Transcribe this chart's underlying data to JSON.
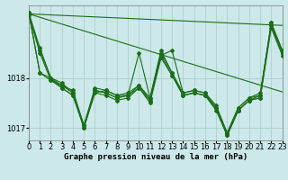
{
  "title": "Graphe pression niveau de la mer (hPa)",
  "background_color": "#cce8e8",
  "line_color": "#1a6e1a",
  "grid_color": "#a8cccc",
  "series": [
    [
      1019.3,
      1018.6,
      1018.0,
      1017.85,
      1017.75,
      1017.05,
      1017.7,
      1017.75,
      1017.65,
      1017.65,
      1018.5,
      1017.6,
      1018.55,
      1018.1,
      1017.65,
      1017.7,
      1017.65,
      1017.4,
      1016.85,
      1017.35,
      1017.55,
      1017.65,
      1019.1,
      1018.55
    ],
    [
      1019.3,
      1018.1,
      1018.0,
      1017.8,
      1017.65,
      1017.05,
      1017.75,
      1017.7,
      1017.6,
      1017.65,
      1017.85,
      1017.55,
      1018.45,
      1018.55,
      1017.7,
      1017.75,
      1017.7,
      1017.4,
      1016.9,
      1017.4,
      1017.6,
      1017.7,
      1019.05,
      1018.5
    ],
    [
      1019.3,
      1018.55,
      1018.0,
      1017.9,
      1017.7,
      1017.05,
      1017.8,
      1017.75,
      1017.65,
      1017.7,
      1017.85,
      1017.6,
      1018.5,
      1018.1,
      1017.7,
      1017.75,
      1017.7,
      1017.45,
      1016.9,
      1017.4,
      1017.6,
      1017.65,
      1019.1,
      1018.55
    ],
    [
      1019.25,
      1018.5,
      1017.95,
      1017.85,
      1017.7,
      1017.0,
      1017.75,
      1017.7,
      1017.6,
      1017.65,
      1017.8,
      1017.55,
      1018.45,
      1018.05,
      1017.65,
      1017.7,
      1017.65,
      1017.4,
      1016.85,
      1017.35,
      1017.55,
      1017.6,
      1019.05,
      1018.5
    ],
    [
      1019.3,
      1018.1,
      1017.95,
      1017.8,
      1017.65,
      1017.0,
      1017.7,
      1017.65,
      1017.55,
      1017.6,
      1017.8,
      1017.5,
      1018.4,
      1018.05,
      1017.65,
      1017.7,
      1017.65,
      1017.35,
      1016.85,
      1017.35,
      1017.55,
      1017.6,
      1019.0,
      1018.45
    ]
  ],
  "straight_series": [
    [
      [
        0,
        23
      ],
      [
        1019.28,
        1017.72
      ]
    ],
    [
      [
        0,
        23
      ],
      [
        1019.28,
        1019.05
      ]
    ]
  ],
  "x": [
    0,
    1,
    2,
    3,
    4,
    5,
    6,
    7,
    8,
    9,
    10,
    11,
    12,
    13,
    14,
    15,
    16,
    17,
    18,
    19,
    20,
    21,
    22,
    23
  ],
  "xlim": [
    0,
    23
  ],
  "ylim": [
    1016.75,
    1019.45
  ],
  "yticks": [
    1017,
    1018
  ],
  "xticks": [
    0,
    1,
    2,
    3,
    4,
    5,
    6,
    7,
    8,
    9,
    10,
    11,
    12,
    13,
    14,
    15,
    16,
    17,
    18,
    19,
    20,
    21,
    22,
    23
  ],
  "tick_fontsize": 6,
  "title_fontsize": 6.5,
  "marker": "D",
  "markersize": 2.0,
  "linewidth": 0.8
}
